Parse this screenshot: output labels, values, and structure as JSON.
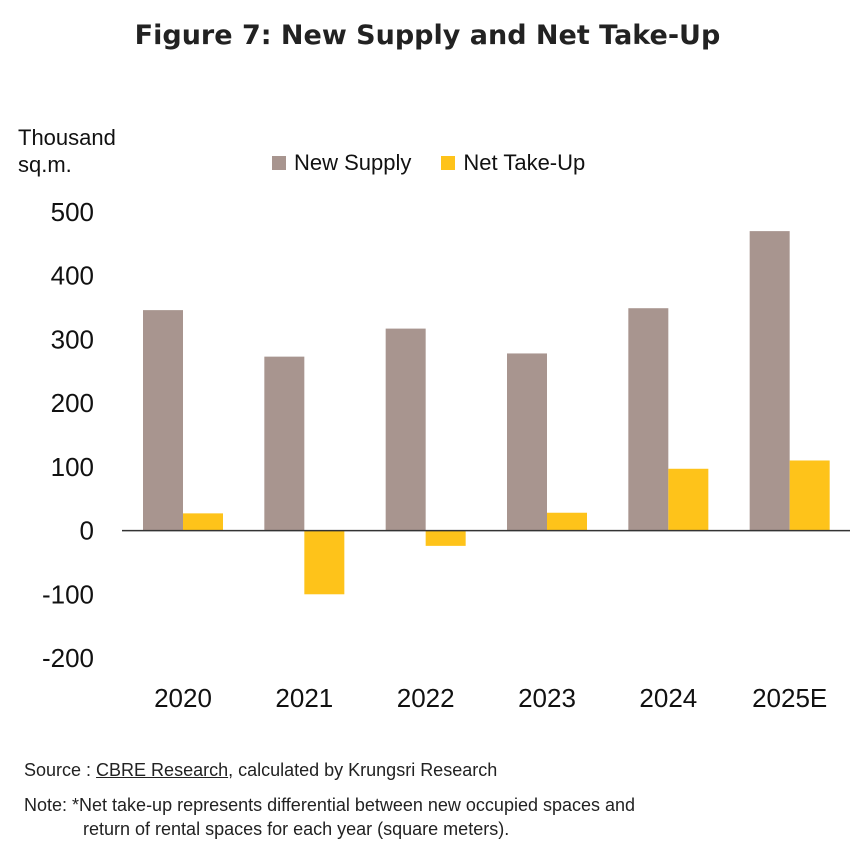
{
  "figure_title": "Figure 7: New Supply  and Net Take-Up",
  "unit_label": [
    "Thousand",
    "sq.m."
  ],
  "source": {
    "prefix": "Source : ",
    "link": "CBRE Research",
    "suffix": ", calculated by Krungsri Research"
  },
  "note": {
    "line1": "Note: *Net take-up represents differential between new occupied spaces and",
    "line2": "return of rental spaces for each year (square meters)."
  },
  "colors": {
    "new_supply": "#a8958f",
    "net_take_up": "#fec31a",
    "axis": "#333333"
  },
  "chart_data": {
    "type": "bar",
    "title": "Figure 7: New Supply  and Net Take-Up",
    "ylabel": "Thousand sq.m.",
    "xlabel": "",
    "categories": [
      "2020",
      "2021",
      "2022",
      "2023",
      "2024",
      "2025E"
    ],
    "series": [
      {
        "name": "New Supply",
        "values": [
          346,
          273,
          317,
          278,
          349,
          470
        ]
      },
      {
        "name": "Net Take-Up",
        "values": [
          27,
          -100,
          -24,
          28,
          97,
          110
        ]
      }
    ],
    "ylim": [
      -200,
      500
    ],
    "yticks": [
      500,
      400,
      300,
      200,
      100,
      0,
      -100,
      -200
    ],
    "legend_position": "top",
    "grid": false
  }
}
